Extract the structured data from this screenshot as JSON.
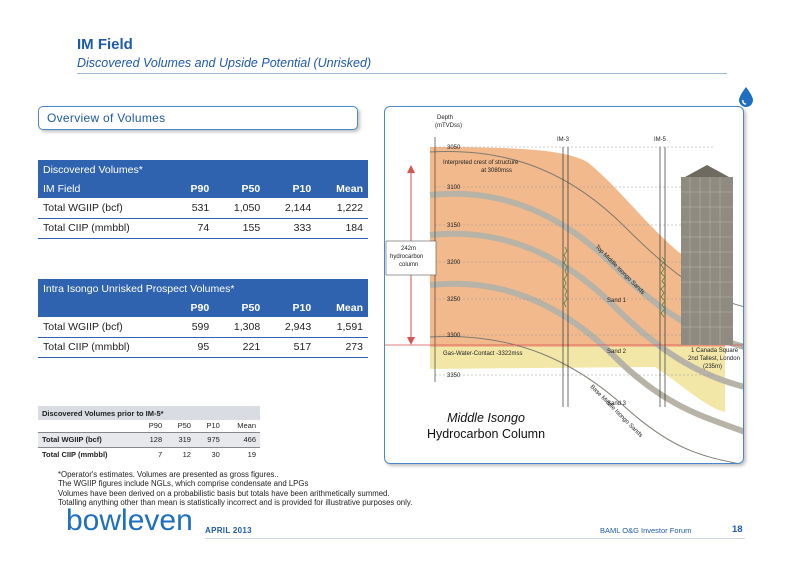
{
  "header": {
    "title": "IM Field",
    "subtitle": "Discovered Volumes and Upside Potential (Unrisked)"
  },
  "overview_label": "Overview of Volumes",
  "discovered_table": {
    "caption": "Discovered Volumes*",
    "header": [
      "IM Field",
      "P90",
      "P50",
      "P10",
      "Mean"
    ],
    "rows": [
      [
        "Total WGIIP (bcf)",
        "531",
        "1,050",
        "2,144",
        "1,222"
      ],
      [
        "Total CIIP (mmbbl)",
        "74",
        "155",
        "333",
        "184"
      ]
    ]
  },
  "prospect_table": {
    "caption": "Intra Isongo Unrisked Prospect Volumes*",
    "header": [
      "",
      "P90",
      "P50",
      "P10",
      "Mean"
    ],
    "rows": [
      [
        "Total WGIIP (bcf)",
        "599",
        "1,308",
        "2,943",
        "1,591"
      ],
      [
        "Total CIIP (mmbbl)",
        "95",
        "221",
        "517",
        "273"
      ]
    ]
  },
  "prior_table": {
    "caption": "Discovered Volumes prior to IM-5*",
    "header": [
      "",
      "P90",
      "P50",
      "P10",
      "Mean"
    ],
    "rows": [
      [
        "Total WGIIP (bcf)",
        "128",
        "319",
        "975",
        "466"
      ],
      [
        "Total CIIP (mmbbl)",
        "7",
        "12",
        "30",
        "19"
      ]
    ]
  },
  "notes": [
    "*Operator's estimates. Volumes are presented as gross figures..",
    "The WGIIP figures include NGLs, which comprise condensate and LPGs",
    "Volumes have been derived on a probabilistic basis but totals have been arithmetically summed.",
    "Totalling anything other than mean is statistically incorrect and is provided for illustrative purposes only."
  ],
  "diagram": {
    "depth_title_line1": "Depth",
    "depth_title_line2": "(mTVDss)",
    "depths": [
      "3050",
      "3100",
      "3150",
      "3200",
      "3250",
      "3300",
      "3350"
    ],
    "wells": [
      "IM-3",
      "IM-5"
    ],
    "crest_line1": "Interpreted crest of structure",
    "crest_line2": "at 3080mss",
    "column_box": [
      "242m",
      "hydrocarbon",
      "column"
    ],
    "gwc": "Gas-Water-Contact -3322mss",
    "sand_labels": [
      "Sand 1",
      "Sand 2",
      "Sand 3"
    ],
    "surface_top": "Top Middle Isongo Sands",
    "surface_base": "Base Middle Isongo Sands",
    "building_label": [
      "1 Canada Square",
      "2nd Tallest, London",
      "(235m)"
    ],
    "caption_line1": "Middle Isongo",
    "caption_line2": "Hydrocarbon Column"
  },
  "footer": {
    "logo": "bowleven",
    "date": "APRIL 2013",
    "forum": "BAML O&G Investor Forum",
    "page": "18"
  },
  "colors": {
    "brand_blue": "#1e5aa8",
    "table_header": "#2f63b0",
    "sand_orange": "#f2b98c",
    "water_yellow": "#f3e7a8"
  }
}
